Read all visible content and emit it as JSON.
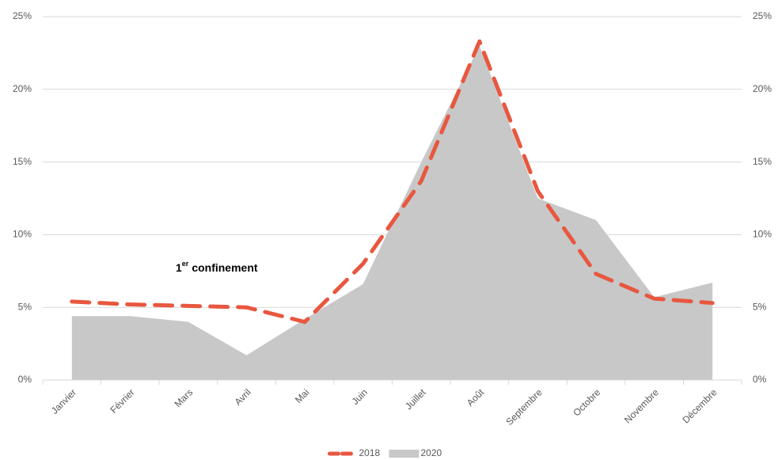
{
  "chart_data": {
    "type": "line",
    "categories": [
      "Janvier",
      "Février",
      "Mars",
      "Avril",
      "Mai",
      "Juin",
      "Juillet",
      "Août",
      "Septembre",
      "Octobre",
      "Novembre",
      "Décembre"
    ],
    "series": [
      {
        "name": "2018",
        "color": "#e8573f",
        "style": "dashed",
        "values": [
          5.4,
          5.2,
          5.1,
          5.0,
          4.0,
          8.0,
          13.7,
          23.3,
          13.0,
          7.3,
          5.6,
          5.3
        ]
      },
      {
        "name": "2020",
        "color": "#c8c8c8",
        "style": "area",
        "values": [
          4.4,
          4.4,
          4.0,
          1.7,
          4.2,
          6.6,
          15.0,
          23.0,
          12.5,
          11.0,
          5.7,
          6.7
        ]
      }
    ],
    "ylim": [
      0,
      25
    ],
    "yticks": [
      {
        "value": 0,
        "label": "0%"
      },
      {
        "value": 5,
        "label": "5%"
      },
      {
        "value": 10,
        "label": "10%"
      },
      {
        "value": 15,
        "label": "15%"
      },
      {
        "value": 20,
        "label": "20%"
      },
      {
        "value": 25,
        "label": "25%"
      }
    ],
    "y2lim": [
      0,
      25
    ],
    "y2ticks": [
      {
        "value": 0,
        "label": "0%"
      },
      {
        "value": 5,
        "label": "5%"
      },
      {
        "value": 10,
        "label": "10%"
      },
      {
        "value": 15,
        "label": "15%"
      },
      {
        "value": 20,
        "label": "20%"
      },
      {
        "value": 25,
        "label": "25%"
      }
    ],
    "grid": true,
    "legend": "bottom",
    "annotation": {
      "base": "1",
      "superscript": "er",
      "text": "confinement"
    }
  }
}
